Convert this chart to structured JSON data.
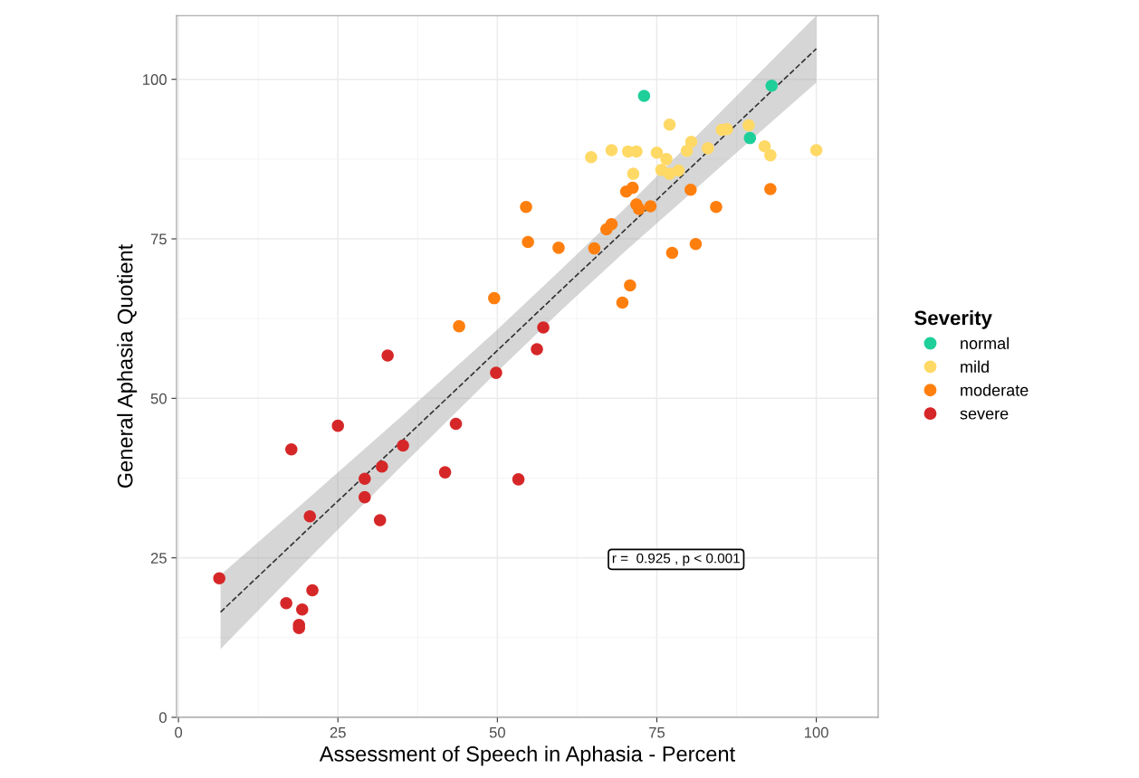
{
  "chart_data": {
    "type": "scatter",
    "xlabel": "Assessment of Speech in Aphasia - Percent",
    "ylabel": "General Aphasia Quotient",
    "legend_title": "Severity",
    "xlim": [
      -0.3,
      109.7
    ],
    "ylim": [
      0,
      110
    ],
    "xticks": [
      0,
      25,
      50,
      75,
      100
    ],
    "yticks": [
      0,
      25,
      50,
      75,
      100
    ],
    "grid": true,
    "legend": "right",
    "marker": "circle",
    "series": [
      {
        "name": "normal",
        "color": "#1fcf9a",
        "x": [
          73.0,
          93.0,
          89.6
        ],
        "values": [
          97.4,
          99.0,
          90.8
        ]
      },
      {
        "name": "mild",
        "color": "#ffd966",
        "x": [
          64.7,
          67.9,
          70.5,
          71.8,
          77.0,
          75.0,
          76.5,
          71.3,
          75.7,
          77.0,
          78.4,
          80.4,
          79.7,
          83.0,
          85.2,
          86.0,
          89.4,
          91.9,
          92.8,
          100
        ],
        "values": [
          87.8,
          88.9,
          88.7,
          88.7,
          92.9,
          88.5,
          87.5,
          85.2,
          85.8,
          85.2,
          85.7,
          90.2,
          88.8,
          89.2,
          92.1,
          92.2,
          92.8,
          89.5,
          88.1,
          88.9
        ]
      },
      {
        "name": "moderate",
        "color": "#ff7f0e",
        "x": [
          70.2,
          71.2,
          71.8,
          72.2,
          74.0,
          80.3,
          84.3,
          92.8,
          67.1,
          67.9,
          65.2,
          77.4,
          81.1,
          54.5,
          54.8,
          59.6,
          70.8,
          69.6,
          49.5,
          44.0
        ],
        "values": [
          82.4,
          83.0,
          80.4,
          79.7,
          80.1,
          82.7,
          80.0,
          82.8,
          76.5,
          77.3,
          73.5,
          72.8,
          74.2,
          80.0,
          74.5,
          73.6,
          67.7,
          65.0,
          65.7,
          61.3
        ]
      },
      {
        "name": "severe",
        "color": "#d62728",
        "x": [
          57.2,
          56.2,
          49.8,
          32.8,
          25.0,
          17.7,
          43.5,
          35.2,
          31.9,
          29.2,
          41.8,
          53.3,
          29.2,
          20.6,
          31.6,
          6.4,
          21.0,
          16.9,
          19.4,
          18.9,
          18.9
        ],
        "values": [
          61.1,
          57.7,
          54.0,
          56.7,
          45.7,
          42.0,
          46.0,
          42.6,
          39.3,
          37.4,
          38.4,
          37.3,
          34.5,
          31.5,
          30.9,
          21.8,
          19.9,
          17.9,
          16.9,
          14.5,
          14.0
        ]
      },
      {
        "type": "line",
        "color": "#333333",
        "line_style": "dashed",
        "marker": "none",
        "x": [
          6.6,
          20,
          35,
          50,
          60,
          70,
          85,
          100
        ],
        "values": [
          16.5,
          29.2,
          43.3,
          57.5,
          67.0,
          76.4,
          90.6,
          104.8
        ],
        "lower": [
          10.7,
          24.4,
          39.4,
          54.2,
          63.8,
          73.0,
          86.3,
          99.5
        ],
        "upper": [
          22.3,
          34.0,
          47.2,
          60.8,
          70.2,
          79.8,
          94.9,
          110.0
        ]
      }
    ],
    "annotations": [
      "r =  0.925 , p < 0.001"
    ]
  }
}
